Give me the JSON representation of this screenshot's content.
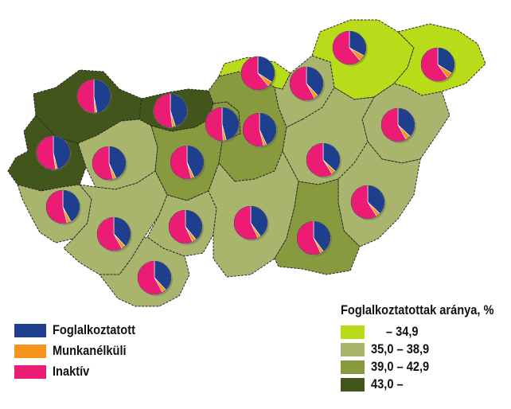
{
  "map": {
    "colors": {
      "boundary": "#2a2a2a",
      "employed": "#1d3f8e",
      "unemployed": "#f7941d",
      "inactive": "#ec1c75"
    },
    "class_colors": [
      "#b8dc1a",
      "#a9b56d",
      "#879a3e",
      "#42561b"
    ],
    "regions": [
      {
        "id": "gyor",
        "class": 3,
        "employed": 0.47,
        "unemployed": 0.02,
        "inactive": 0.51
      },
      {
        "id": "komarom",
        "class": 3,
        "employed": 0.45,
        "unemployed": 0.03,
        "inactive": 0.52
      },
      {
        "id": "vas",
        "class": 3,
        "employed": 0.46,
        "unemployed": 0.02,
        "inactive": 0.52
      },
      {
        "id": "zala",
        "class": 1,
        "employed": 0.42,
        "unemployed": 0.04,
        "inactive": 0.54
      },
      {
        "id": "veszprem",
        "class": 1,
        "employed": 0.43,
        "unemployed": 0.03,
        "inactive": 0.54
      },
      {
        "id": "fejer",
        "class": 2,
        "employed": 0.43,
        "unemployed": 0.03,
        "inactive": 0.54
      },
      {
        "id": "somogy",
        "class": 1,
        "employed": 0.38,
        "unemployed": 0.04,
        "inactive": 0.58
      },
      {
        "id": "tolna",
        "class": 1,
        "employed": 0.39,
        "unemployed": 0.04,
        "inactive": 0.57
      },
      {
        "id": "baranya",
        "class": 1,
        "employed": 0.38,
        "unemployed": 0.04,
        "inactive": 0.58
      },
      {
        "id": "budapest",
        "class": 2,
        "employed": 0.46,
        "unemployed": 0.03,
        "inactive": 0.51
      },
      {
        "id": "pest",
        "class": 2,
        "employed": 0.43,
        "unemployed": 0.03,
        "inactive": 0.54
      },
      {
        "id": "nograd",
        "class": 0,
        "employed": 0.34,
        "unemployed": 0.05,
        "inactive": 0.61
      },
      {
        "id": "heves",
        "class": 1,
        "employed": 0.38,
        "unemployed": 0.04,
        "inactive": 0.58
      },
      {
        "id": "borsod",
        "class": 0,
        "employed": 0.33,
        "unemployed": 0.06,
        "inactive": 0.61
      },
      {
        "id": "szabolcs",
        "class": 0,
        "employed": 0.34,
        "unemployed": 0.06,
        "inactive": 0.6
      },
      {
        "id": "hajdu",
        "class": 1,
        "employed": 0.37,
        "unemployed": 0.05,
        "inactive": 0.58
      },
      {
        "id": "jasz",
        "class": 1,
        "employed": 0.37,
        "unemployed": 0.04,
        "inactive": 0.59
      },
      {
        "id": "bacs",
        "class": 1,
        "employed": 0.4,
        "unemployed": 0.03,
        "inactive": 0.57
      },
      {
        "id": "bekes",
        "class": 1,
        "employed": 0.37,
        "unemployed": 0.04,
        "inactive": 0.59
      },
      {
        "id": "csongrad",
        "class": 2,
        "employed": 0.4,
        "unemployed": 0.03,
        "inactive": 0.57
      }
    ]
  },
  "legend": {
    "employed": "Foglalkoztatott",
    "unemployed": "Munkanélküli",
    "inactive": "Inaktív"
  },
  "class_legend": {
    "title": "Foglalkoztatottak aránya, %",
    "c0": "– 34,9",
    "c1": "35,0 – 38,9",
    "c2": "39,0 – 42,9",
    "c3": "43,0 –"
  }
}
